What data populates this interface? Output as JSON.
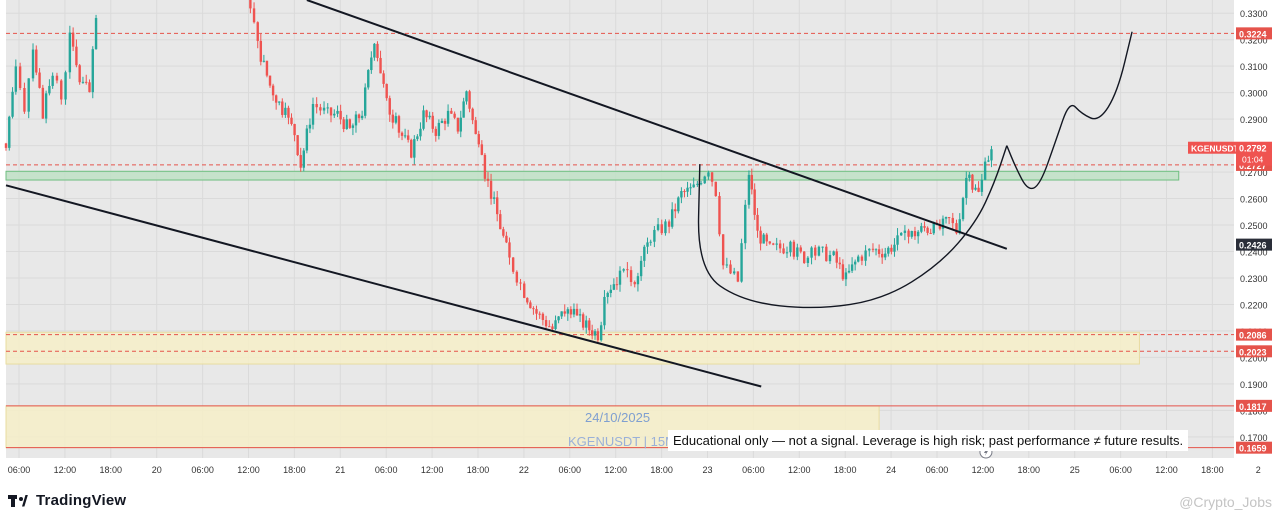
{
  "chart_data": {
    "type": "candlestick",
    "symbol": "KGENUSDT",
    "last_price": "0.2792",
    "countdown": "01:04",
    "y_axis": {
      "ticks": [
        "0.3300",
        "0.3200",
        "0.3100",
        "0.3000",
        "0.2900",
        "0.2800",
        "0.2700",
        "0.2600",
        "0.2500",
        "0.2400",
        "0.2300",
        "0.2200",
        "0.2100",
        "0.2000",
        "0.1900",
        "0.1800",
        "0.1700"
      ],
      "ylim": [
        0.162,
        0.335
      ]
    },
    "x_axis": {
      "ticks": [
        "06:00",
        "12:00",
        "18:00",
        "20",
        "06:00",
        "12:00",
        "18:00",
        "21",
        "06:00",
        "12:00",
        "18:00",
        "22",
        "06:00",
        "12:00",
        "18:00",
        "23",
        "06:00",
        "12:00",
        "18:00",
        "24",
        "06:00",
        "12:00",
        "18:00",
        "25",
        "06:00",
        "12:00",
        "18:00",
        "2"
      ]
    },
    "price_tags": [
      {
        "label": "0.3224",
        "value": 0.3224,
        "color": "#e5534b",
        "line": "dashed"
      },
      {
        "label": "0.2727",
        "value": 0.2727,
        "color": "#e5534b",
        "line": "dashed"
      },
      {
        "label": "0.2426",
        "value": 0.2426,
        "color": "#2a2e39",
        "line": "none"
      },
      {
        "label": "0.2086",
        "value": 0.2086,
        "color": "#e5534b",
        "line": "dashed"
      },
      {
        "label": "0.2023",
        "value": 0.2023,
        "color": "#e5534b",
        "line": "dashed"
      },
      {
        "label": "0.1817",
        "value": 0.1817,
        "color": "#e5534b",
        "line": "solid"
      },
      {
        "label": "0.1659",
        "value": 0.1659,
        "color": "#e5534b",
        "line": "solid"
      }
    ],
    "zones": [
      {
        "name": "green-resistance-zone",
        "y_top": 0.2703,
        "y_bottom": 0.267,
        "x_start": 0.0,
        "x_end": 0.955,
        "fill": "#bfe0c6",
        "stroke": "#6fbf80"
      },
      {
        "name": "yellow-support-zone",
        "y_top": 0.2095,
        "y_bottom": 0.1975,
        "x_start": 0.0,
        "x_end": 0.923,
        "fill": "#f6eec8",
        "stroke": "#e8dca0"
      },
      {
        "name": "yellow-lower-zone",
        "y_top": 0.1817,
        "y_bottom": 0.1659,
        "x_start": 0.0,
        "x_end": 0.711,
        "fill": "#f6eec8",
        "stroke": "#e8dca0"
      }
    ],
    "series": [
      {
        "name": "KGENUSDT",
        "points": [
          [
            0.0,
            0.277
          ],
          [
            0.008,
            0.312
          ],
          [
            0.015,
            0.295
          ],
          [
            0.022,
            0.318
          ],
          [
            0.03,
            0.292
          ],
          [
            0.038,
            0.307
          ],
          [
            0.045,
            0.299
          ],
          [
            0.052,
            0.321
          ],
          [
            0.06,
            0.305
          ],
          [
            0.068,
            0.3
          ],
          [
            0.076,
            0.342
          ],
          [
            0.196,
            0.342
          ],
          [
            0.205,
            0.318
          ],
          [
            0.215,
            0.303
          ],
          [
            0.225,
            0.294
          ],
          [
            0.235,
            0.285
          ],
          [
            0.24,
            0.273
          ],
          [
            0.25,
            0.296
          ],
          [
            0.262,
            0.292
          ],
          [
            0.27,
            0.292
          ],
          [
            0.28,
            0.286
          ],
          [
            0.29,
            0.293
          ],
          [
            0.3,
            0.321
          ],
          [
            0.31,
            0.296
          ],
          [
            0.32,
            0.286
          ],
          [
            0.33,
            0.278
          ],
          [
            0.34,
            0.292
          ],
          [
            0.35,
            0.286
          ],
          [
            0.36,
            0.292
          ],
          [
            0.368,
            0.287
          ],
          [
            0.375,
            0.301
          ],
          [
            0.385,
            0.278
          ],
          [
            0.39,
            0.27
          ],
          [
            0.4,
            0.254
          ],
          [
            0.41,
            0.237
          ],
          [
            0.422,
            0.225
          ],
          [
            0.432,
            0.217
          ],
          [
            0.445,
            0.211
          ],
          [
            0.455,
            0.218
          ],
          [
            0.465,
            0.215
          ],
          [
            0.475,
            0.211
          ],
          [
            0.482,
            0.209
          ],
          [
            0.49,
            0.226
          ],
          [
            0.5,
            0.231
          ],
          [
            0.512,
            0.23
          ],
          [
            0.525,
            0.246
          ],
          [
            0.54,
            0.251
          ],
          [
            0.55,
            0.262
          ],
          [
            0.56,
            0.264
          ],
          [
            0.572,
            0.272
          ],
          [
            0.578,
            0.263
          ],
          [
            0.584,
            0.235
          ],
          [
            0.596,
            0.229
          ],
          [
            0.605,
            0.27
          ],
          [
            0.612,
            0.247
          ],
          [
            0.622,
            0.241
          ],
          [
            0.636,
            0.242
          ],
          [
            0.65,
            0.238
          ],
          [
            0.662,
            0.24
          ],
          [
            0.674,
            0.238
          ],
          [
            0.684,
            0.23
          ],
          [
            0.694,
            0.238
          ],
          [
            0.706,
            0.241
          ],
          [
            0.716,
            0.24
          ],
          [
            0.726,
            0.244
          ],
          [
            0.735,
            0.246
          ],
          [
            0.748,
            0.249
          ],
          [
            0.758,
            0.248
          ],
          [
            0.768,
            0.252
          ],
          [
            0.774,
            0.248
          ],
          [
            0.782,
            0.268
          ],
          [
            0.792,
            0.262
          ],
          [
            0.8,
            0.276
          ],
          [
            0.805,
            0.2792
          ]
        ]
      }
    ],
    "trendlines": [
      {
        "name": "upper-channel-line",
        "from": [
          0.245,
          0.335
        ],
        "to": [
          0.815,
          0.241
        ]
      },
      {
        "name": "lower-channel-line",
        "from": [
          0.0,
          0.265
        ],
        "to": [
          0.615,
          0.189
        ]
      }
    ],
    "drawings": [
      {
        "name": "cup-curve",
        "points": [
          [
            0.565,
            0.273
          ],
          [
            0.563,
            0.233
          ],
          [
            0.6,
            0.221
          ],
          [
            0.66,
            0.218
          ],
          [
            0.715,
            0.222
          ],
          [
            0.76,
            0.235
          ],
          [
            0.79,
            0.251
          ],
          [
            0.805,
            0.266
          ],
          [
            0.815,
            0.28
          ]
        ]
      },
      {
        "name": "projection-curve",
        "points": [
          [
            0.815,
            0.28
          ],
          [
            0.822,
            0.272
          ],
          [
            0.832,
            0.263
          ],
          [
            0.842,
            0.265
          ],
          [
            0.855,
            0.282
          ],
          [
            0.866,
            0.297
          ],
          [
            0.876,
            0.292
          ],
          [
            0.89,
            0.289
          ],
          [
            0.905,
            0.3
          ],
          [
            0.917,
            0.323
          ]
        ]
      }
    ],
    "annotations": {
      "date": "24/10/2025",
      "symbol_text": "KGENUSDT | 15M",
      "disclaimer": "Educational only — not a signal. Leverage is high risk; past performance ≠ future results."
    },
    "grid": true,
    "legend": "none"
  },
  "branding": {
    "name": "TradingView",
    "watermark": "@Crypto_Jobs"
  }
}
